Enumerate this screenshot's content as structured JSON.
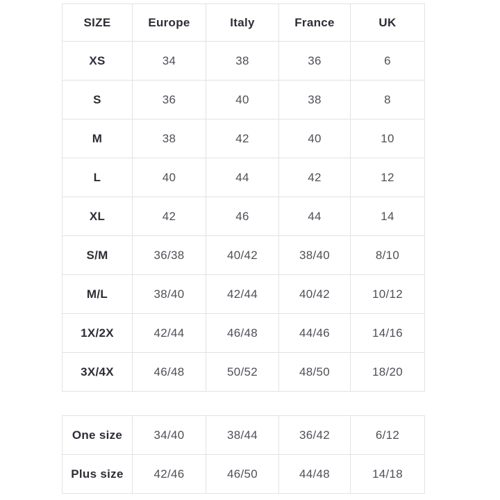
{
  "colors": {
    "background": "#ffffff",
    "border": "#e2e2e4",
    "header_text": "#2e2c36",
    "label_text": "#2e2c36",
    "value_text": "#4f4f58"
  },
  "chart_data": {
    "type": "table",
    "columns": [
      "SIZE",
      "Europe",
      "Italy",
      "France",
      "UK"
    ],
    "rows": [
      [
        "XS",
        "34",
        "38",
        "36",
        "6"
      ],
      [
        "S",
        "36",
        "40",
        "38",
        "8"
      ],
      [
        "M",
        "38",
        "42",
        "40",
        "10"
      ],
      [
        "L",
        "40",
        "44",
        "42",
        "12"
      ],
      [
        "XL",
        "42",
        "46",
        "44",
        "14"
      ],
      [
        "S/M",
        "36/38",
        "40/42",
        "38/40",
        "8/10"
      ],
      [
        "M/L",
        "38/40",
        "42/44",
        "40/42",
        "10/12"
      ],
      [
        "1X/2X",
        "42/44",
        "46/48",
        "44/46",
        "14/16"
      ],
      [
        "3X/4X",
        "46/48",
        "50/52",
        "48/50",
        "18/20"
      ]
    ],
    "secondary_rows": [
      [
        "One size",
        "34/40",
        "38/44",
        "36/42",
        "6/12"
      ],
      [
        "Plus size",
        "42/46",
        "46/50",
        "44/48",
        "14/18"
      ]
    ]
  }
}
